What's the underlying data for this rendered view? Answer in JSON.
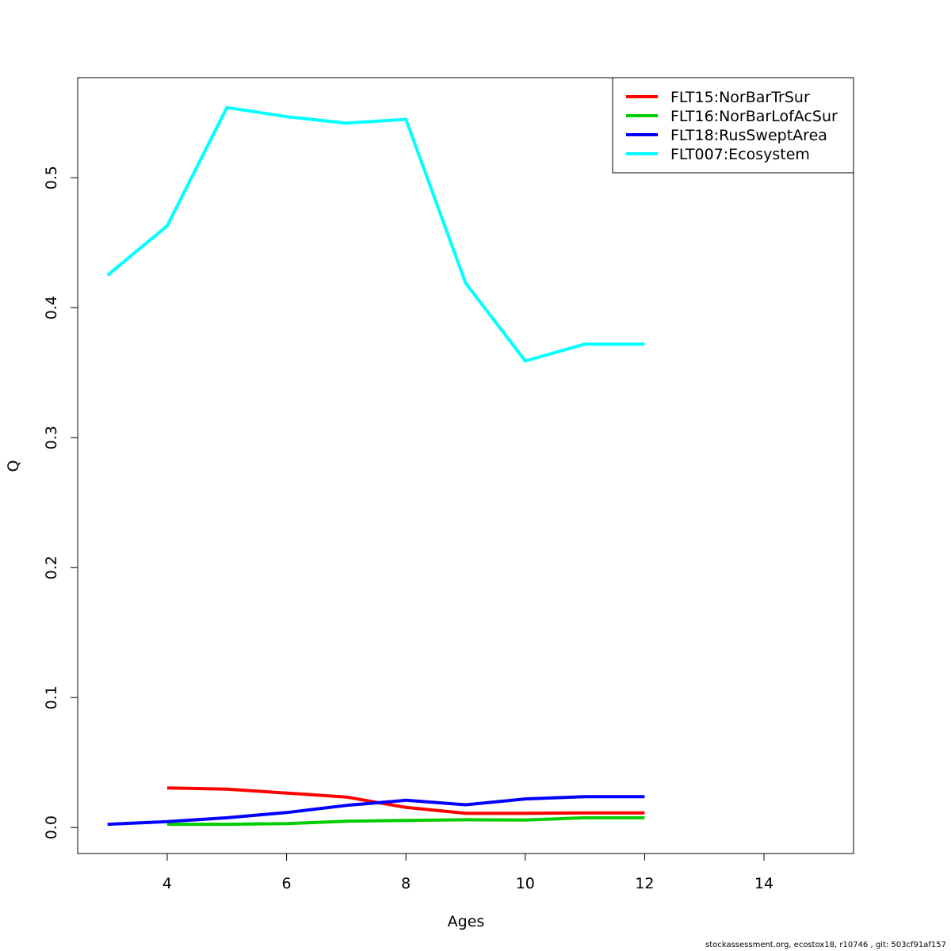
{
  "chart_data": {
    "type": "line",
    "title": "",
    "xlabel": "Ages",
    "ylabel": "Q",
    "xlim": [
      2.5,
      15.5
    ],
    "ylim": [
      -0.02,
      0.577
    ],
    "xticks": [
      4,
      6,
      8,
      10,
      12,
      14
    ],
    "xtick_labels": [
      "4",
      "6",
      "8",
      "10",
      "12",
      "14"
    ],
    "yticks": [
      0.0,
      0.1,
      0.2,
      0.3,
      0.4,
      0.5
    ],
    "ytick_labels": [
      "0.0",
      "0.1",
      "0.2",
      "0.3",
      "0.4",
      "0.5"
    ],
    "grid": false,
    "legend_position": "top-right",
    "series": [
      {
        "name": "FLT15:NorBarTrSur",
        "color": "#ff0000",
        "x": [
          4,
          5,
          6,
          7,
          8,
          9,
          10,
          11,
          12
        ],
        "y": [
          0.0305,
          0.0295,
          0.0265,
          0.0235,
          0.0155,
          0.011,
          0.011,
          0.0112,
          0.0112
        ]
      },
      {
        "name": "FLT16:NorBarLofAcSur",
        "color": "#00cd00",
        "x": [
          4,
          5,
          6,
          7,
          8,
          9,
          10,
          11,
          12
        ],
        "y": [
          0.0025,
          0.0025,
          0.003,
          0.0048,
          0.0055,
          0.006,
          0.0058,
          0.0075,
          0.0075
        ]
      },
      {
        "name": "FLT18:RusSweptArea",
        "color": "#0000ff",
        "x": [
          3,
          4,
          5,
          6,
          7,
          8,
          9,
          10,
          11,
          12
        ],
        "y": [
          0.0025,
          0.0045,
          0.0075,
          0.0115,
          0.017,
          0.021,
          0.0175,
          0.022,
          0.0238,
          0.0238
        ]
      },
      {
        "name": "FLT007:Ecosystem",
        "color": "#00ffff",
        "x": [
          3,
          4,
          5,
          6,
          7,
          8,
          9,
          10,
          11,
          12
        ],
        "y": [
          0.425,
          0.463,
          0.554,
          0.547,
          0.542,
          0.545,
          0.419,
          0.359,
          0.372,
          0.372
        ]
      }
    ]
  },
  "footer": "stockassessment.org, ecostox18, r10746 , git: 503cf91af157"
}
